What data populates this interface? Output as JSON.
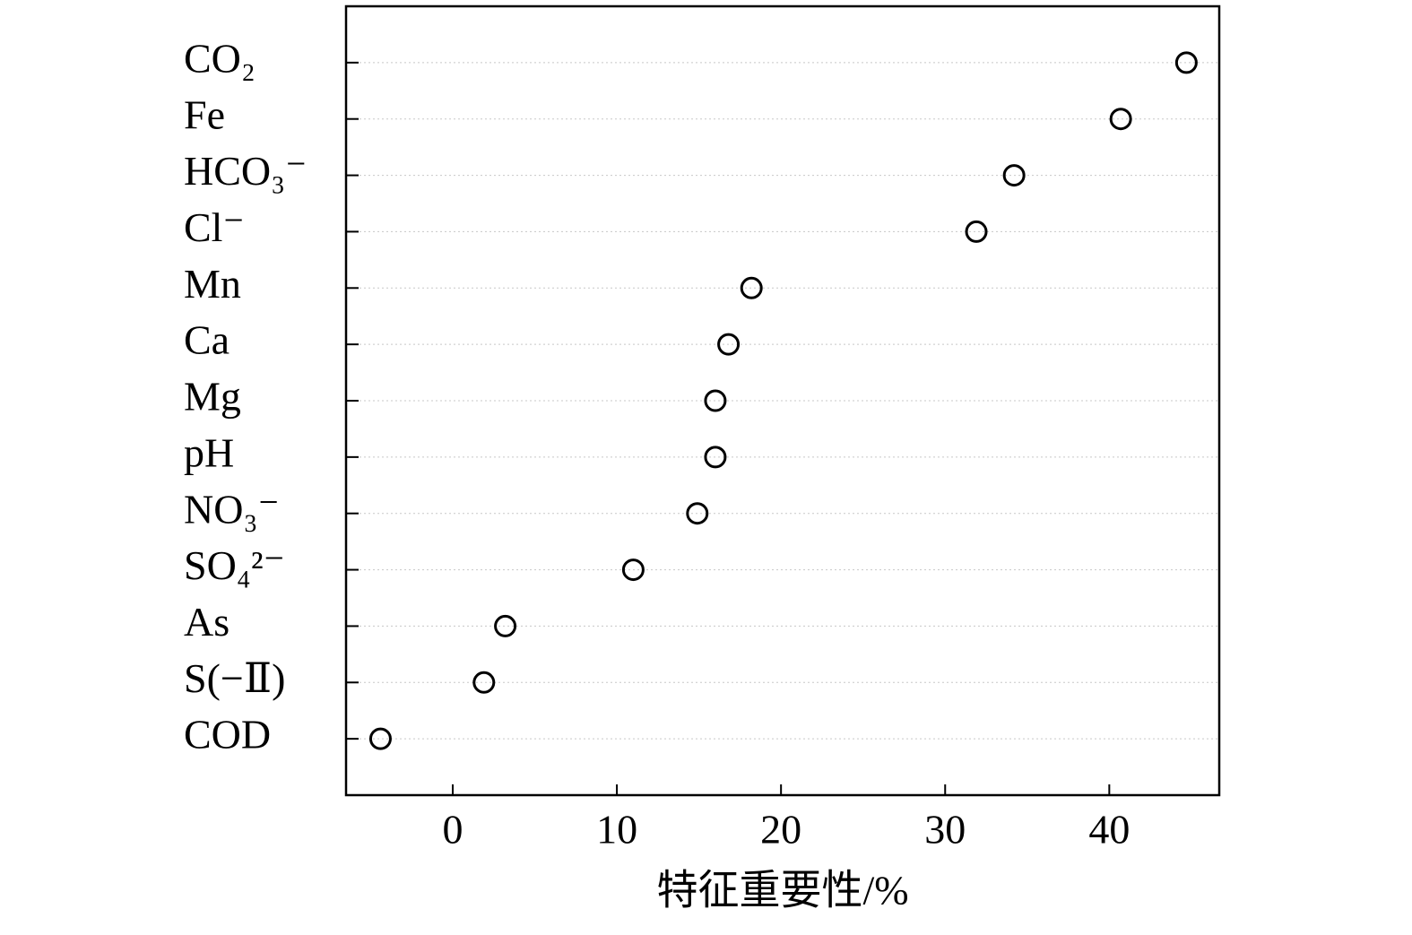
{
  "chart_data": {
    "type": "scatter",
    "categories": [
      "CO₂",
      "Fe",
      "HCO₃⁻",
      "Cl⁻",
      "Mn",
      "Ca",
      "Mg",
      "pH",
      "NO₃⁻",
      "SO₄²⁻",
      "As",
      "S(−Ⅱ)",
      "COD"
    ],
    "values": [
      44.7,
      40.7,
      34.2,
      31.9,
      18.2,
      16.8,
      16.0,
      16.0,
      14.9,
      11.0,
      3.2,
      1.9,
      -4.4
    ],
    "color": "#000000",
    "x_label": "特征重要性/%",
    "xlim": [
      -6.5,
      46.7
    ],
    "xticks": [
      0,
      10,
      20,
      30,
      40
    ],
    "grid": true
  }
}
